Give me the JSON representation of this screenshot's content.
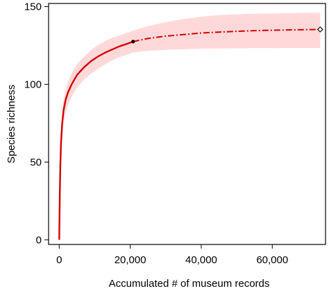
{
  "chart_data": {
    "type": "line",
    "title": "",
    "xlabel": "Accumulated # of museum records",
    "ylabel": "Species richness",
    "xlim": [
      -3000,
      75000
    ],
    "ylim": [
      -3,
      152
    ],
    "x_ticks": [
      0,
      20000,
      40000,
      60000
    ],
    "x_tick_labels": [
      "0",
      "20,000",
      "40,000",
      "60,000"
    ],
    "y_ticks": [
      0,
      50,
      100,
      150
    ],
    "y_tick_labels": [
      "0",
      "50",
      "100",
      "150"
    ],
    "grid": false,
    "legend": "none",
    "colors": {
      "curve": "#d40000",
      "band": "#ffd9d9",
      "marker_reference": "#000000",
      "marker_extrapolated_fill": "#ffffff"
    },
    "series": [
      {
        "role": "interpolated",
        "style": "solid",
        "x": [
          0,
          150,
          300,
          500,
          800,
          1200,
          1800,
          2500,
          3500,
          5000,
          7000,
          9000,
          11000,
          13000,
          15000,
          17000,
          19000,
          20800
        ],
        "y": [
          0,
          28,
          47,
          62,
          74,
          83,
          90,
          95,
          100,
          106,
          111,
          115,
          118,
          120.5,
          122.5,
          124.5,
          126,
          127.5
        ],
        "lower": [
          0,
          24,
          41,
          55,
          66,
          75,
          82,
          87,
          92,
          98,
          103,
          107,
          110,
          113,
          115.5,
          117.5,
          119,
          120.5
        ],
        "upper": [
          0,
          32,
          53,
          69,
          81,
          90,
          97,
          102,
          107,
          113,
          118,
          122,
          125.5,
          128,
          130,
          131.5,
          133,
          134.5
        ]
      },
      {
        "role": "extrapolated",
        "style": "dashdot",
        "x": [
          20800,
          25000,
          30000,
          35000,
          40000,
          45000,
          50000,
          55000,
          60000,
          65000,
          70000,
          73500
        ],
        "y": [
          127.5,
          129.5,
          131,
          132,
          133,
          133.6,
          134.1,
          134.5,
          134.8,
          135,
          135.2,
          135.3
        ],
        "lower": [
          120.5,
          121.5,
          122.2,
          122.6,
          122.9,
          123.1,
          123.2,
          123.3,
          123.3,
          123.4,
          123.4,
          123.4
        ],
        "upper": [
          134.5,
          137.5,
          140,
          142,
          143.5,
          144.5,
          145,
          145.4,
          145.6,
          145.8,
          146,
          146
        ]
      }
    ],
    "markers": [
      {
        "label": "reference sample",
        "x": 20800,
        "y": 127.5,
        "shape": "dot"
      },
      {
        "label": "extrapolation endpoint",
        "x": 73500,
        "y": 135.3,
        "shape": "open-diamond"
      }
    ]
  }
}
